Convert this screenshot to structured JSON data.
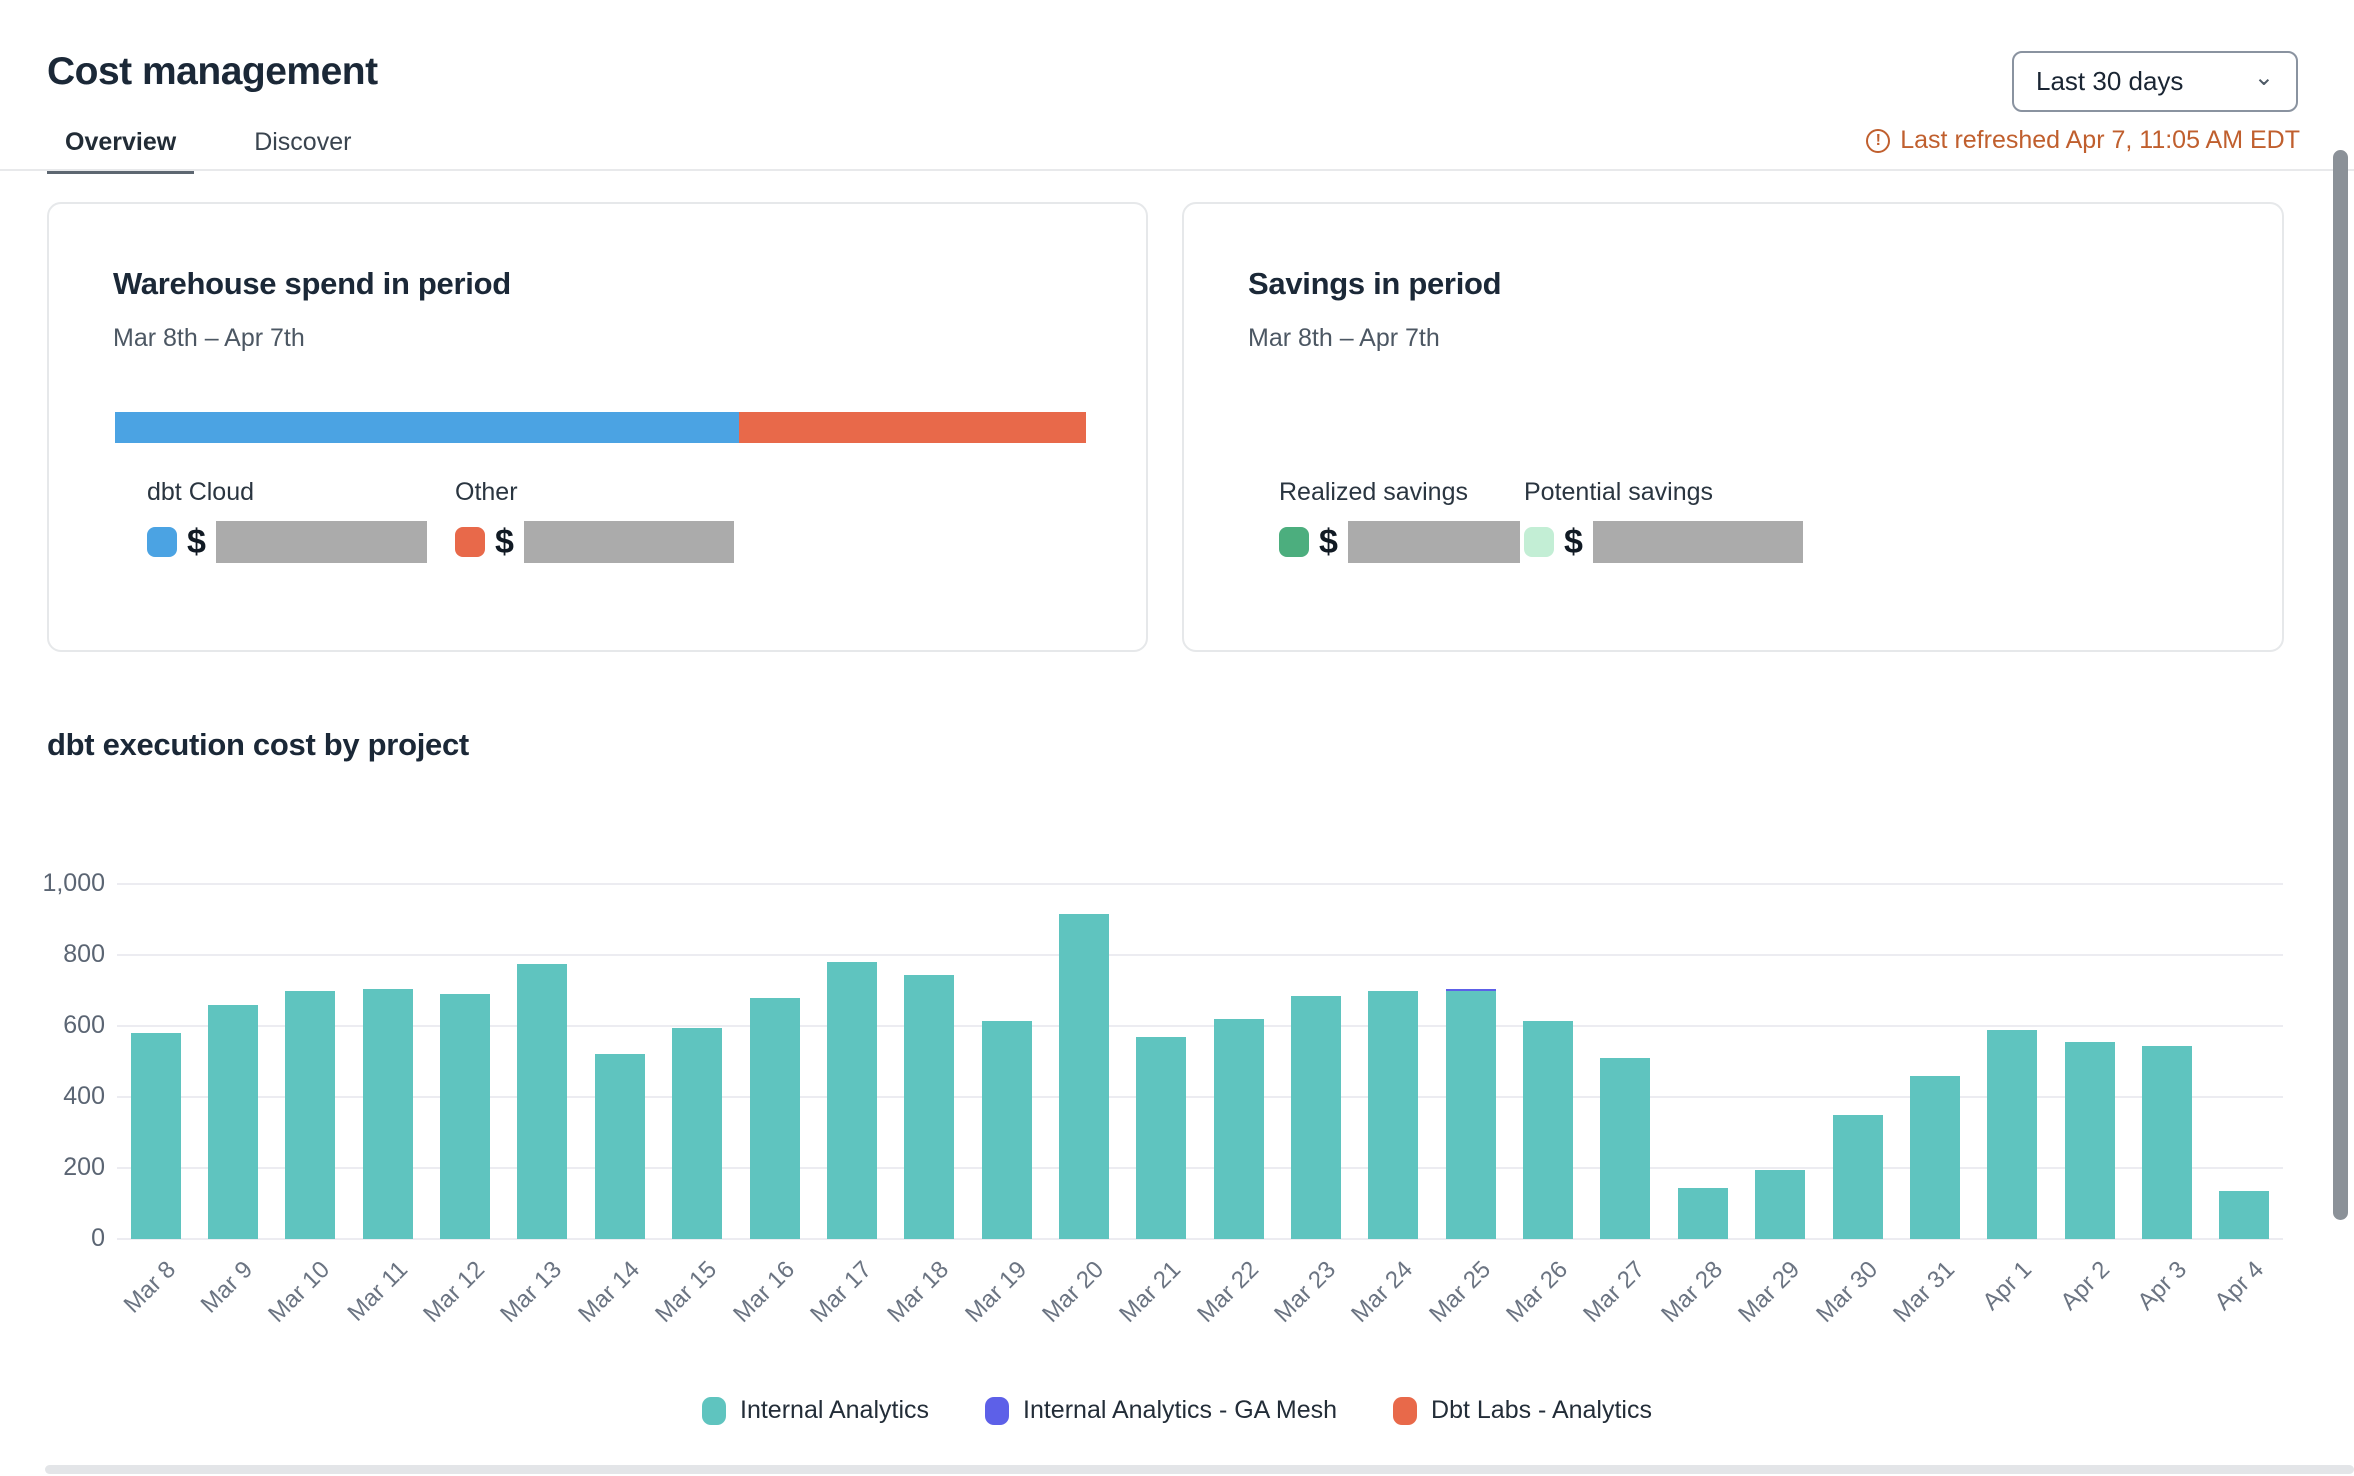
{
  "header": {
    "title": "Cost management",
    "period_selector": {
      "label": "Last 30 days",
      "chevron_icon": "chevron-down"
    },
    "last_refreshed": "Last refreshed Apr 7, 11:05 AM EDT",
    "warning_icon": "!",
    "refresh_color": "#c05f2e"
  },
  "tabs": {
    "overview": "Overview",
    "discover": "Discover",
    "active_tab": "Overview"
  },
  "cards": {
    "warehouse": {
      "title": "Warehouse spend in period",
      "period": "Mar 8th – Apr 7th",
      "stacked_bar": {
        "dbt_cloud_width": "64.3%",
        "other_width": "35.7%",
        "dbt_cloud_color": "#4ba3e3",
        "other_color": "#e8694a"
      },
      "legend": [
        {
          "label": "dbt Cloud",
          "currency": "$",
          "swatch_color": "#4ba3e3",
          "value_redacted": true
        },
        {
          "label": "Other",
          "currency": "$",
          "swatch_color": "#e8694a",
          "value_redacted": true
        }
      ]
    },
    "savings": {
      "title": "Savings in period",
      "period": "Mar 8th – Apr 7th",
      "legend": [
        {
          "label": "Realized savings",
          "currency": "$",
          "swatch_color": "#4cae7e",
          "value_redacted": true
        },
        {
          "label": "Potential savings",
          "currency": "$",
          "swatch_color": "#c3eed5",
          "value_redacted": true
        }
      ]
    }
  },
  "chart_section": {
    "title": "dbt execution cost by project"
  },
  "chart_data": {
    "type": "bar",
    "title": "dbt execution cost by project",
    "categories": [
      "Mar 8",
      "Mar 9",
      "Mar 10",
      "Mar 11",
      "Mar 12",
      "Mar 13",
      "Mar 14",
      "Mar 15",
      "Mar 16",
      "Mar 17",
      "Mar 18",
      "Mar 19",
      "Mar 20",
      "Mar 21",
      "Mar 22",
      "Mar 23",
      "Mar 24",
      "Mar 25",
      "Mar 26",
      "Mar 27",
      "Mar 28",
      "Mar 29",
      "Mar 30",
      "Mar 31",
      "Apr 1",
      "Apr 2",
      "Apr 3",
      "Apr 4"
    ],
    "series": [
      {
        "name": "Internal Analytics",
        "color": "#5fc4bf",
        "values": [
          580,
          660,
          700,
          705,
          690,
          775,
          520,
          595,
          680,
          780,
          745,
          615,
          915,
          570,
          620,
          685,
          700,
          698,
          615,
          510,
          145,
          195,
          350,
          460,
          590,
          555,
          545,
          135
        ]
      },
      {
        "name": "Internal Analytics - GA Mesh",
        "color": "#5d60e8",
        "values": [
          0,
          0,
          0,
          0,
          0,
          0,
          0,
          0,
          0,
          0,
          0,
          0,
          0,
          0,
          0,
          0,
          0,
          5,
          0,
          0,
          0,
          0,
          0,
          0,
          0,
          0,
          0,
          0
        ]
      },
      {
        "name": "Dbt Labs - Analytics",
        "color": "#e8694a",
        "values": [
          0,
          0,
          0,
          0,
          0,
          0,
          0,
          0,
          0,
          0,
          0,
          0,
          0,
          0,
          0,
          0,
          0,
          0,
          0,
          0,
          0,
          0,
          0,
          0,
          0,
          0,
          0,
          0
        ]
      }
    ],
    "stacked": true,
    "ylim": [
      0,
      1000
    ],
    "yticks": [
      0,
      200,
      400,
      600,
      800,
      1000
    ],
    "ytick_labels": [
      "0",
      "200",
      "400",
      "600",
      "800",
      "1,000"
    ],
    "grid": true,
    "legend_position": "bottom",
    "xlabel": "",
    "ylabel": ""
  },
  "colors": {
    "title_text": "#1b2837",
    "muted_text": "#4c5763",
    "axis_text": "#6b7482",
    "gridline": "#ececf1",
    "redaction_gray": "#ababab",
    "refresh_orange": "#c05f2e",
    "tab_underline": "#5d6771",
    "card_border": "#e6e8ea"
  }
}
